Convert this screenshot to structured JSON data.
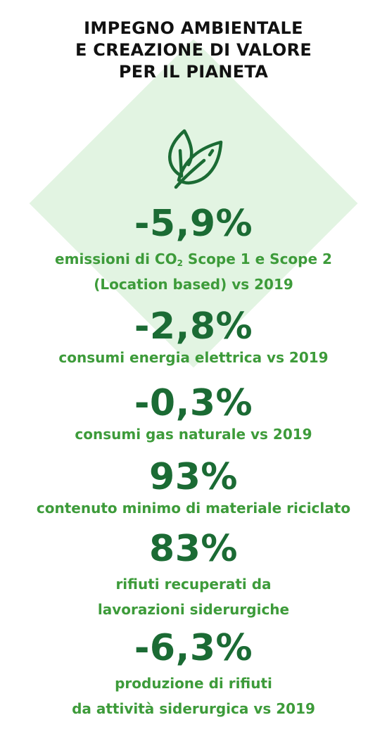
{
  "title": {
    "line1": "IMPEGNO AMBIENTALE",
    "line2": "E CREAZIONE DI VALORE",
    "line3": "PER IL PIANETA"
  },
  "icon": "leaves-icon",
  "colors": {
    "value_green": "#1b6b34",
    "desc_green": "#3d9b3a",
    "diamond_bg": "#e2f4e2",
    "title": "#111111"
  },
  "metrics": [
    {
      "value": "-5,9%",
      "desc_line1_pre": "emissioni di CO",
      "desc_line1_sub": "2",
      "desc_line1_post": " Scope 1 e Scope 2",
      "desc_line2": "(Location based) vs 2019"
    },
    {
      "value": "-2,8%",
      "desc_line1": "consumi energia elettrica vs 2019"
    },
    {
      "value": "-0,3%",
      "desc_line1": "consumi gas naturale vs 2019"
    },
    {
      "value": "93%",
      "desc_line1": "contenuto minimo di materiale riciclato"
    },
    {
      "value": "83%",
      "desc_line1": "rifiuti recuperati da",
      "desc_line2": "lavorazioni siderurgiche"
    },
    {
      "value": "-6,3%",
      "desc_line1": "produzione di rifiuti",
      "desc_line2": "da attività siderurgica vs 2019"
    }
  ]
}
